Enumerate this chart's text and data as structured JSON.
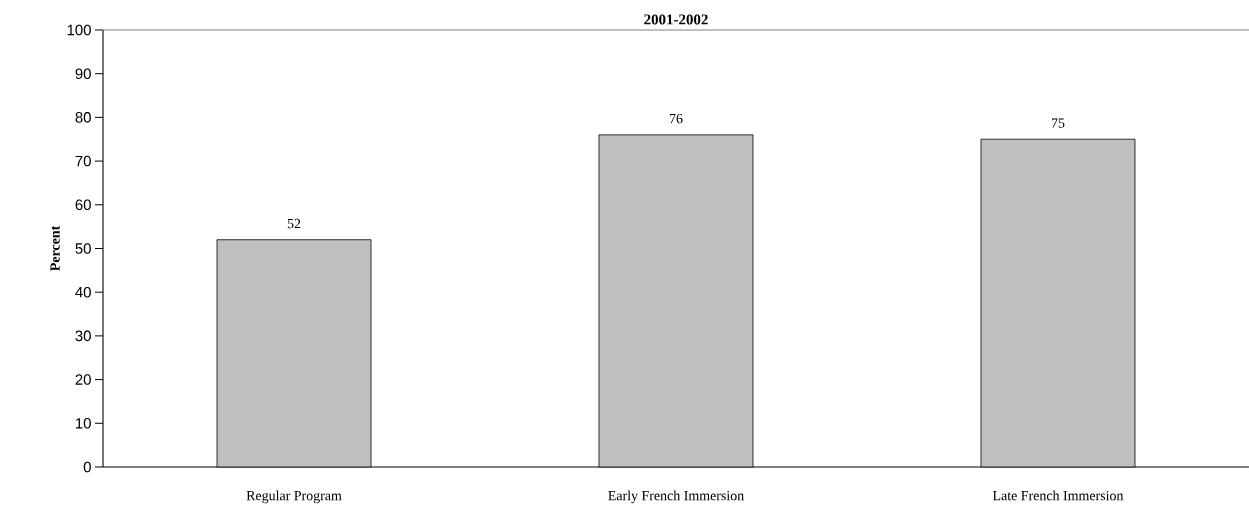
{
  "chart_data": {
    "type": "bar",
    "title": "2001-2002",
    "ylabel": "Percent",
    "categories": [
      "Regular Program",
      "Early French Immersion",
      "Late French Immersion"
    ],
    "values": [
      52,
      76,
      75
    ],
    "color": "#c0c0c0",
    "ylim": [
      0,
      100
    ],
    "yticks": [
      0,
      10,
      20,
      30,
      40,
      50,
      60,
      70,
      80,
      90,
      100
    ],
    "data_labels": true
  }
}
